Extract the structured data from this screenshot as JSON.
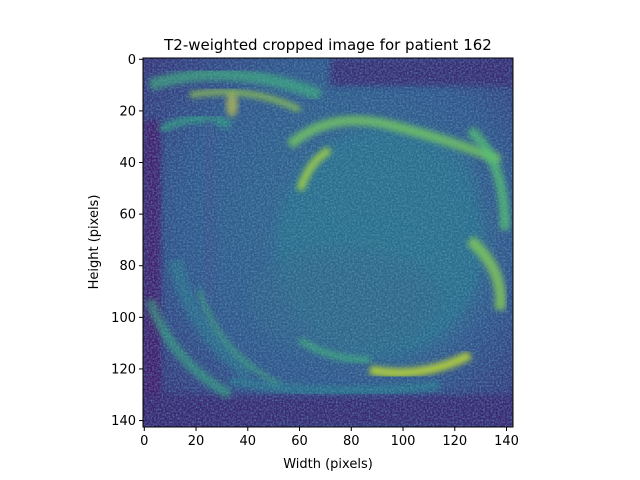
{
  "figure": {
    "title": "T2-weighted cropped image for patient 162",
    "xlabel": "Width (pixels)",
    "ylabel": "Height (pixels)",
    "colormap": "viridis",
    "image_size": [
      143,
      143
    ]
  },
  "chart_data": {
    "type": "heatmap",
    "title": "T2-weighted cropped image for patient 162",
    "xlabel": "Width (pixels)",
    "ylabel": "Height (pixels)",
    "xlim": [
      -0.5,
      142.5
    ],
    "ylim": [
      142.5,
      -0.5
    ],
    "x_ticks": [
      0,
      20,
      40,
      60,
      80,
      100,
      120,
      140
    ],
    "y_ticks": [
      0,
      20,
      40,
      60,
      80,
      100,
      120,
      140
    ],
    "colormap": "viridis",
    "grid": false,
    "legend": "none"
  }
}
